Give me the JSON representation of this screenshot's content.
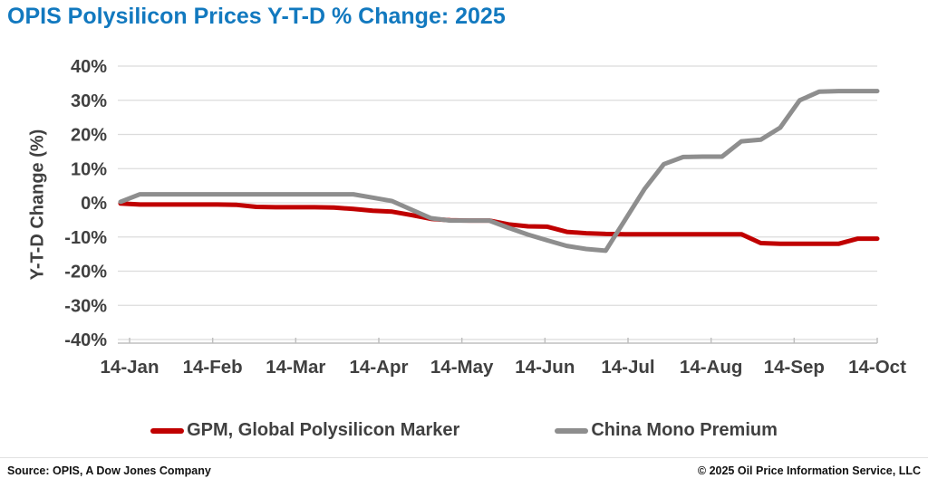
{
  "title": "OPIS Polysilicon Prices Y-T-D % Change: 2025",
  "colors": {
    "title": "#1279bf",
    "gpm_line": "#c00000",
    "china_line": "#8e8e8e",
    "axis_text": "#404040",
    "gridline": "#dcdcdc",
    "axis_line": "#bfbfbf"
  },
  "chart_data": {
    "type": "line",
    "title": "OPIS Polysilicon Prices Y-T-D % Change: 2025",
    "xlabel": "",
    "ylabel": "Y-T-D Change (%)",
    "ylim": [
      -40,
      40
    ],
    "yticks": [
      40,
      30,
      20,
      10,
      0,
      -10,
      -20,
      -30,
      -40
    ],
    "ytick_labels": [
      "40%",
      "30%",
      "20%",
      "10%",
      "0%",
      "-10%",
      "-20%",
      "-30%",
      "-40%"
    ],
    "xtick_labels": [
      "14-Jan",
      "14-Feb",
      "14-Mar",
      "14-Apr",
      "14-May",
      "14-Jun",
      "14-Jul",
      "14-Aug",
      "14-Sep",
      "14-Oct"
    ],
    "grid": "horizontal",
    "legend_position": "bottom",
    "x_unit": "days since 14-Jan (weekly points)",
    "x_days": [
      0,
      7,
      14,
      21,
      28,
      35,
      42,
      49,
      56,
      63,
      70,
      77,
      84,
      91,
      98,
      105,
      112,
      119,
      126,
      133,
      140,
      147,
      154,
      161,
      168,
      175,
      182,
      189,
      196,
      203,
      210,
      217,
      224,
      231,
      238,
      245,
      252,
      259,
      266,
      273
    ],
    "x_total_days": 273,
    "series": [
      {
        "id": "gpm",
        "name": "GPM, Global Polysilicon Marker",
        "color": "#c00000",
        "values": [
          -0.2,
          -0.5,
          -0.5,
          -0.5,
          -0.5,
          -0.5,
          -0.6,
          -1.2,
          -1.3,
          -1.3,
          -1.3,
          -1.4,
          -1.8,
          -2.3,
          -2.6,
          -3.6,
          -4.7,
          -5.1,
          -5.2,
          -5.2,
          -6.3,
          -6.9,
          -7.0,
          -8.5,
          -8.9,
          -9.1,
          -9.2,
          -9.2,
          -9.2,
          -9.2,
          -9.2,
          -9.2,
          -9.2,
          -11.8,
          -12.0,
          -12.0,
          -12.0,
          -12.0,
          -10.5,
          -10.5
        ]
      },
      {
        "id": "china-mono-premium",
        "name": "China Mono Premium",
        "color": "#8e8e8e",
        "values": [
          0.3,
          2.5,
          2.5,
          2.5,
          2.5,
          2.5,
          2.5,
          2.5,
          2.5,
          2.5,
          2.5,
          2.5,
          2.5,
          1.5,
          0.5,
          -2.0,
          -4.5,
          -5.2,
          -5.2,
          -5.2,
          -7.3,
          -9.3,
          -11.0,
          -12.6,
          -13.5,
          -14.0,
          -5.0,
          4.0,
          11.3,
          13.4,
          13.5,
          13.5,
          18.0,
          18.5,
          22.0,
          30.0,
          32.5,
          32.7,
          32.7,
          32.7
        ]
      }
    ]
  },
  "footer": {
    "source": "Source: OPIS, A Dow Jones Company",
    "copyright": "© 2025 Oil Price Information Service, LLC"
  }
}
